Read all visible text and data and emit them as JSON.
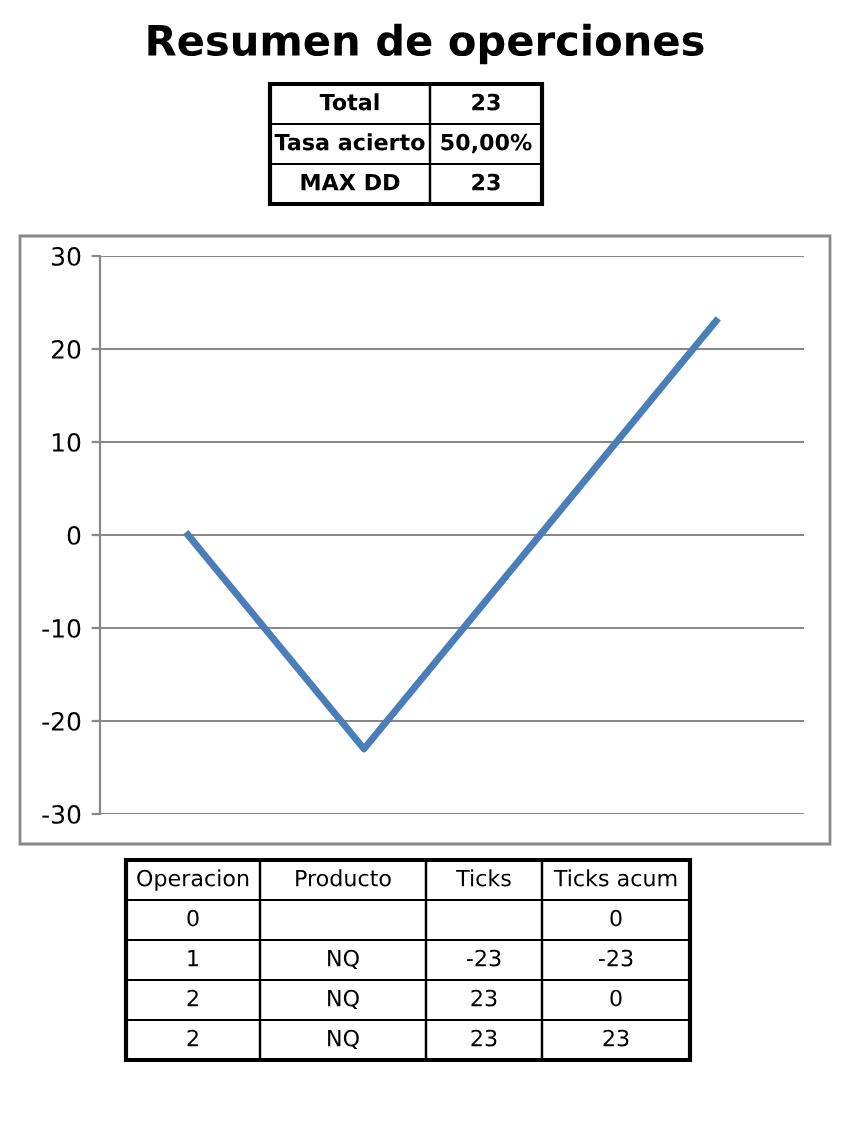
{
  "chart_data": {
    "type": "line",
    "title": "Resumen de operciones",
    "categories": [
      null,
      null,
      null,
      null
    ],
    "series": [
      {
        "color": "#4a7ebb",
        "values": [
          0,
          -23,
          0,
          23
        ]
      }
    ],
    "ylim": [
      -30,
      30
    ],
    "yticks": [
      -30,
      -20,
      -10,
      0,
      10,
      20,
      30
    ],
    "grid": "y",
    "marker": "none",
    "line_style": "solid",
    "annotations": [
      "Total",
      "23",
      "Tasa acierto",
      "50,00%",
      "MAX DD",
      "23",
      "Operacion",
      "Producto",
      "Ticks",
      "Ticks acum",
      "0",
      null,
      null,
      "0",
      "1",
      "NQ",
      "-23",
      "-23",
      "2",
      "NQ",
      "23",
      "0",
      "2",
      "NQ",
      "23",
      "23"
    ]
  }
}
